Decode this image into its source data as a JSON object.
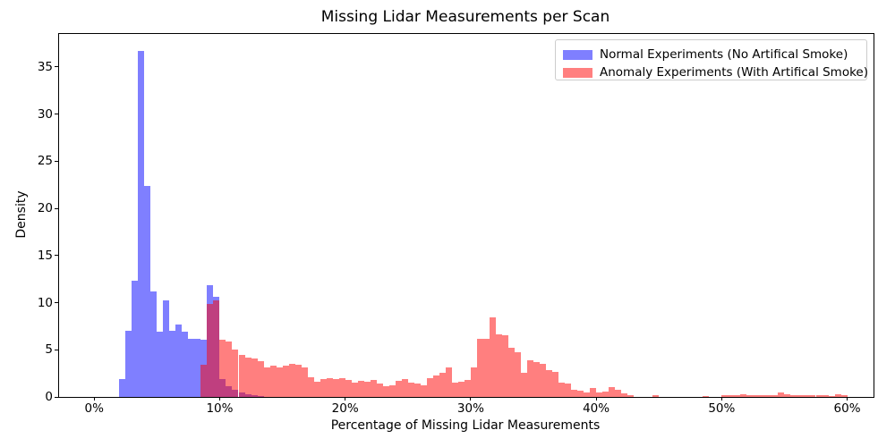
{
  "chart_data": {
    "type": "bar",
    "subtype": "overlaid-histogram",
    "title": "Missing Lidar Measurements per Scan",
    "xlabel": "Percentage of Missing Lidar Measurements",
    "ylabel": "Density",
    "grid": false,
    "legend_position": "upper right",
    "xlim_percent": [
      -2.8,
      62.1
    ],
    "ylim": [
      0,
      38.5
    ],
    "x_ticks_percent": [
      0,
      10,
      20,
      30,
      40,
      50,
      60
    ],
    "x_tick_labels": [
      "0%",
      "10%",
      "20%",
      "30%",
      "40%",
      "50%",
      "60%"
    ],
    "y_ticks": [
      0,
      5,
      10,
      15,
      20,
      25,
      30,
      35
    ],
    "y_tick_labels": [
      "0",
      "5",
      "10",
      "15",
      "20",
      "25",
      "30",
      "35"
    ],
    "bin_width_percent": 0.5,
    "series": [
      {
        "name": "Normal Experiments (No Artifical Smoke)",
        "color": "#0000ff",
        "alpha": 0.5,
        "bin_start_percent": 2.0,
        "densities": [
          1.9,
          7.0,
          12.3,
          36.7,
          22.4,
          11.2,
          6.9,
          10.2,
          7.0,
          7.7,
          6.9,
          6.2,
          6.2,
          6.1,
          11.9,
          10.6,
          1.9,
          1.1,
          0.8,
          0.5,
          0.3,
          0.2,
          0.1
        ]
      },
      {
        "name": "Anomaly Experiments (With Artifical Smoke)",
        "color": "#ff0000",
        "alpha": 0.5,
        "bin_start_percent": 8.5,
        "densities": [
          3.4,
          9.9,
          10.2,
          6.1,
          5.9,
          5.0,
          4.5,
          4.2,
          4.1,
          3.8,
          3.1,
          3.3,
          3.1,
          3.3,
          3.5,
          3.4,
          3.1,
          2.1,
          1.6,
          1.9,
          2.0,
          1.9,
          2.0,
          1.8,
          1.55,
          1.7,
          1.6,
          1.8,
          1.4,
          1.1,
          1.2,
          1.7,
          1.9,
          1.55,
          1.4,
          1.2,
          2.0,
          2.3,
          2.6,
          3.1,
          1.55,
          1.65,
          1.8,
          3.1,
          6.2,
          6.2,
          8.4,
          6.6,
          6.5,
          5.2,
          4.7,
          2.6,
          3.9,
          3.7,
          3.5,
          2.8,
          2.65,
          1.55,
          1.4,
          0.76,
          0.66,
          0.5,
          0.98,
          0.5,
          0.6,
          1.07,
          0.76,
          0.35,
          0.22,
          0,
          0,
          0,
          0.18,
          0,
          0,
          0,
          0,
          0,
          0,
          0,
          0.1,
          0,
          0,
          0.2,
          0.2,
          0.2,
          0.25,
          0.2,
          0.15,
          0.15,
          0.15,
          0.2,
          0.45,
          0.3,
          0.2,
          0.2,
          0.15,
          0.15,
          0.2,
          0.2,
          0.1,
          0.3,
          0.15
        ]
      }
    ]
  }
}
